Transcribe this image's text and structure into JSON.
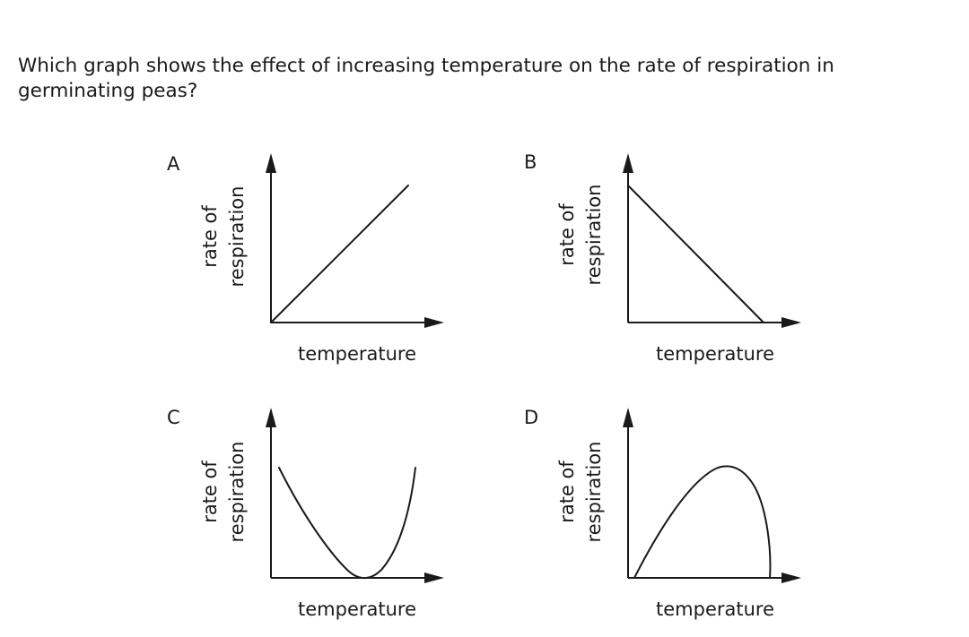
{
  "question": {
    "text": "Which graph shows the effect of increasing temperature on the rate of respiration in germinating peas?"
  },
  "chart_data": [
    {
      "type": "line",
      "label": "A",
      "xlabel": "temperature",
      "ylabel": "rate of respiration",
      "shape": "linear-increasing",
      "x": [
        0,
        1
      ],
      "y": [
        0,
        1
      ]
    },
    {
      "type": "line",
      "label": "B",
      "xlabel": "temperature",
      "ylabel": "rate of respiration",
      "shape": "linear-decreasing",
      "x": [
        0,
        1
      ],
      "y": [
        1,
        0
      ]
    },
    {
      "type": "line",
      "label": "C",
      "xlabel": "temperature",
      "ylabel": "rate of respiration",
      "shape": "u-shaped",
      "x": [
        0,
        0.25,
        0.5,
        0.62,
        0.75,
        1
      ],
      "y": [
        0.8,
        0.45,
        0.12,
        0,
        0.1,
        0.8
      ]
    },
    {
      "type": "line",
      "label": "D",
      "xlabel": "temperature",
      "ylabel": "rate of respiration",
      "shape": "rise-to-peak-then-sharp-fall",
      "x": [
        0,
        0.25,
        0.5,
        0.67,
        0.85,
        1
      ],
      "y": [
        0,
        0.55,
        0.92,
        1,
        0.6,
        0
      ]
    }
  ]
}
